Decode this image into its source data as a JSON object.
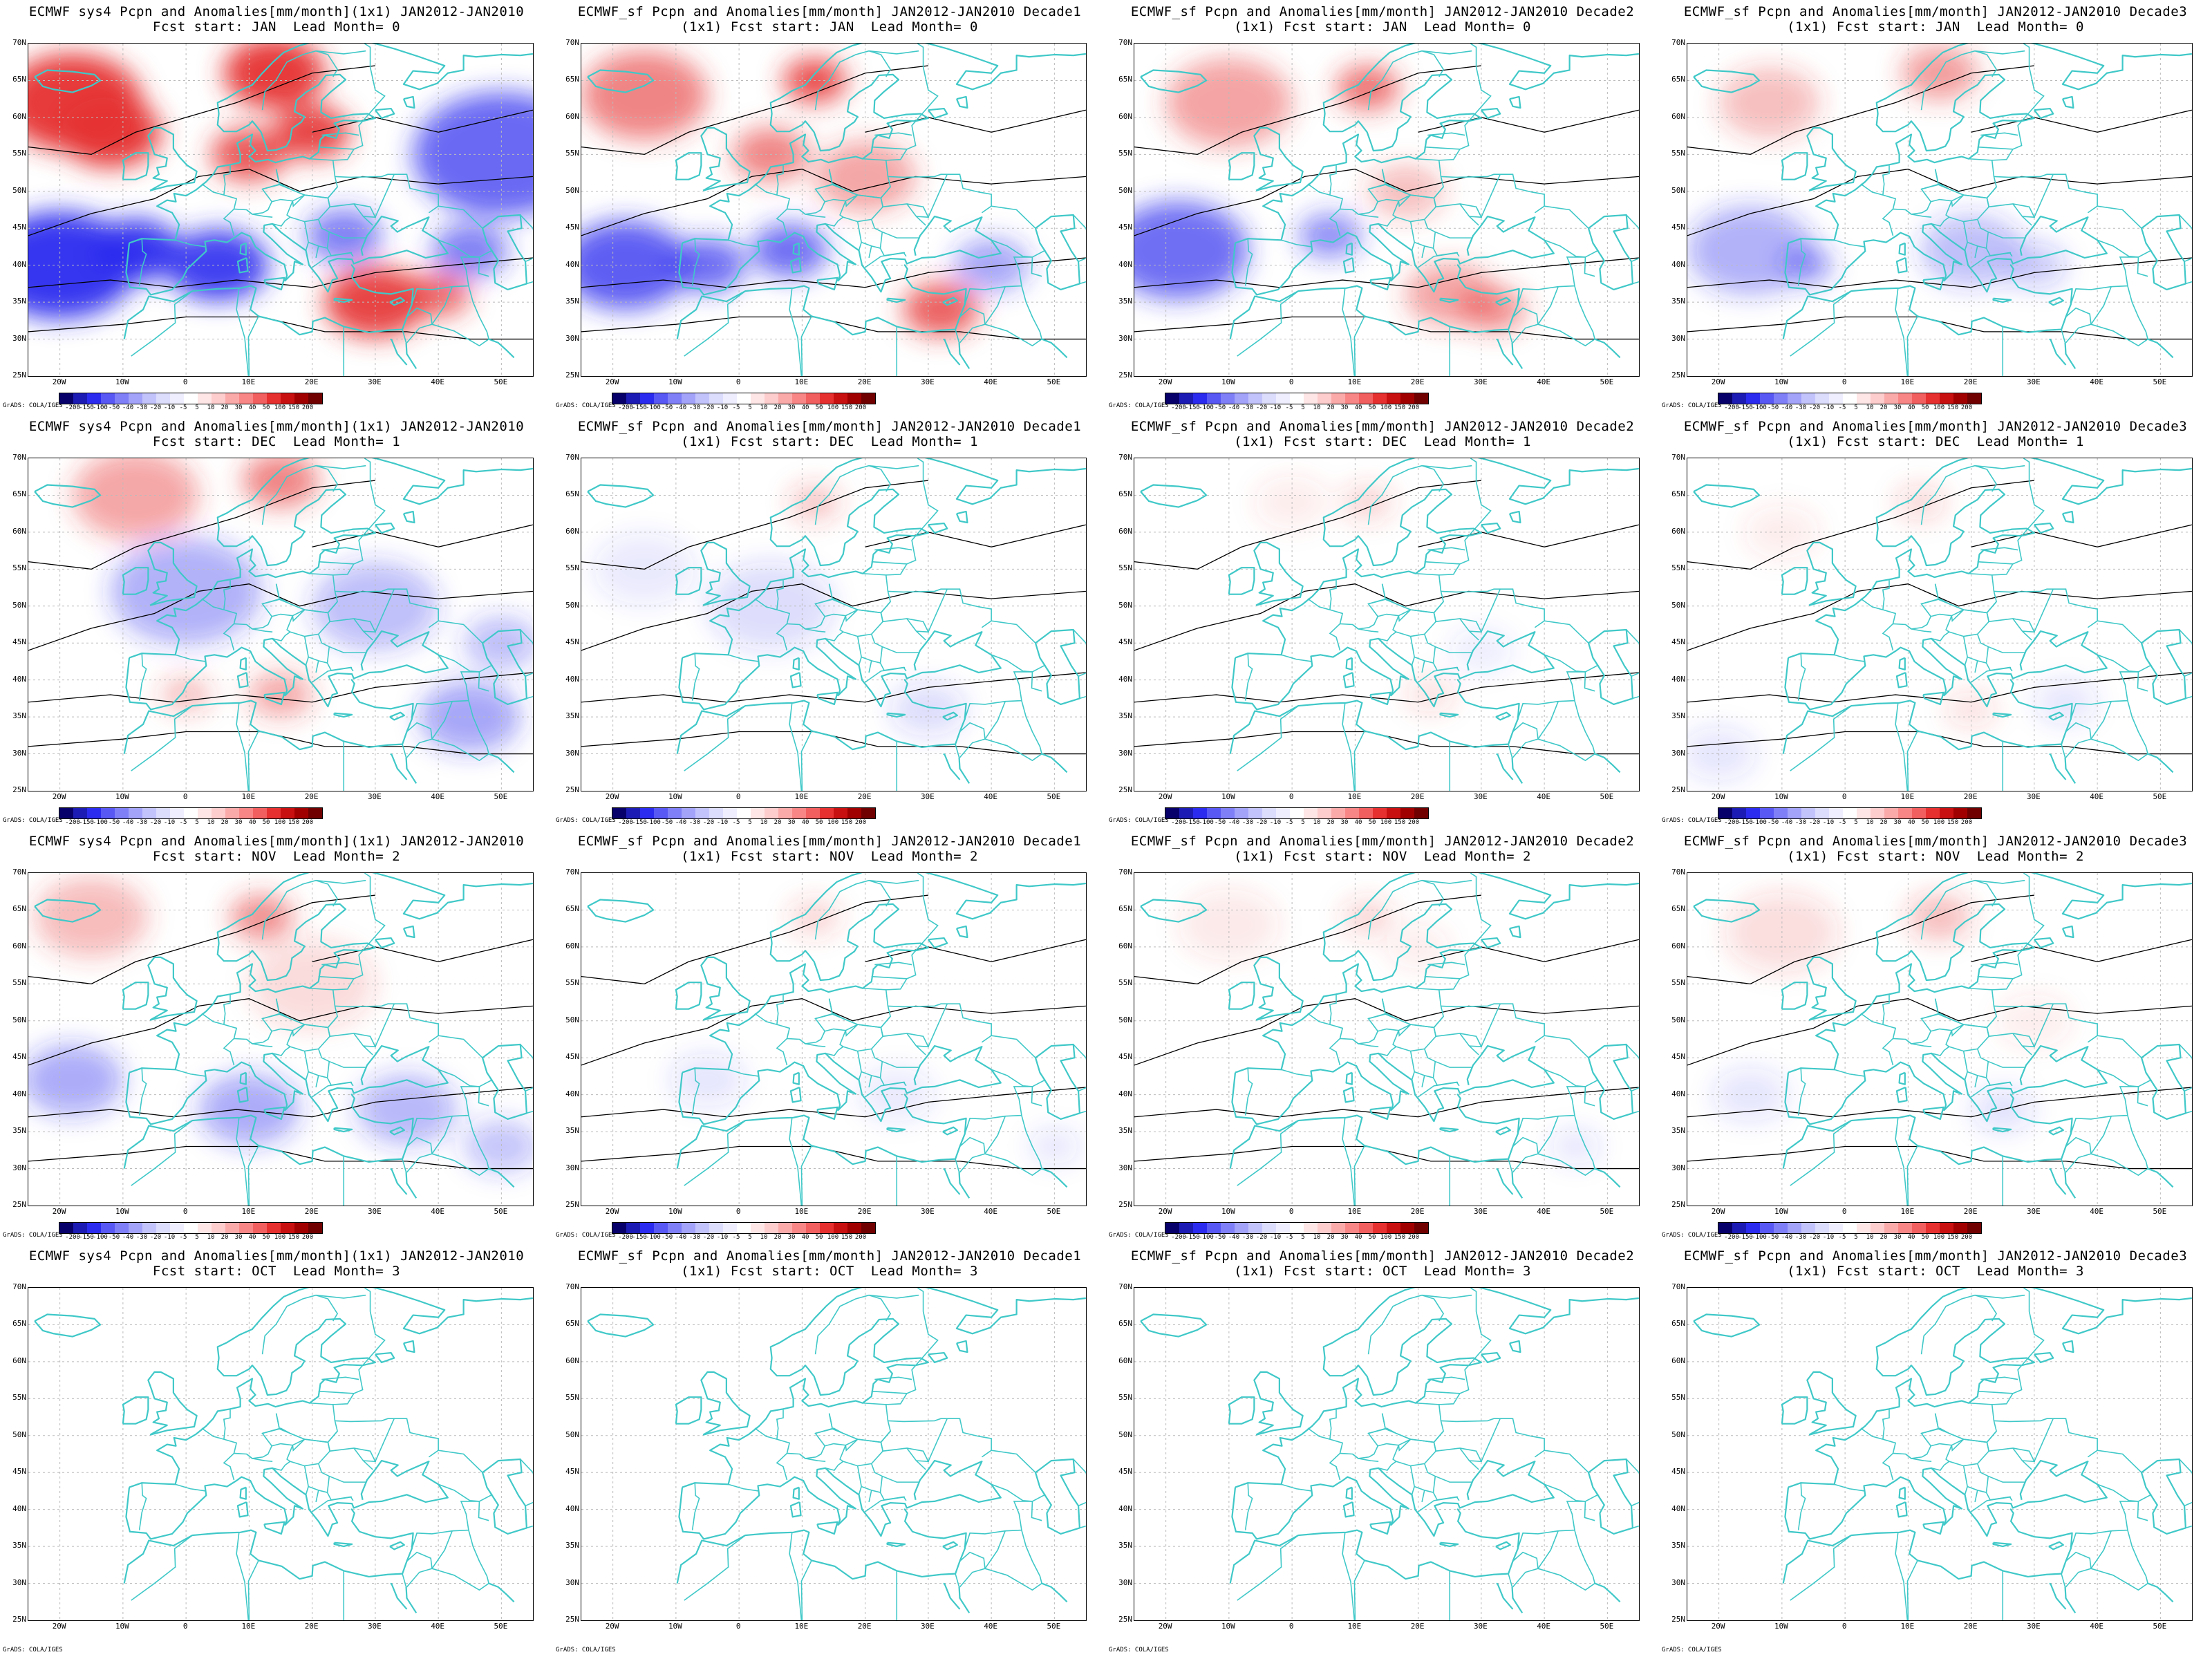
{
  "panels": [
    {
      "title1": "ECMWF sys4 Pcpn and Anomalies[mm/month](1x1) JAN2012-JAN2010",
      "title2": "Fcst start: JAN  Lead Month= 0",
      "intensity": 1.0,
      "colorbar": true
    },
    {
      "title1": "ECMWF_sf Pcpn and Anomalies[mm/month] JAN2012-JAN2010 Decade1",
      "title2": "(1x1) Fcst start: JAN  Lead Month= 0",
      "intensity": 0.85,
      "colorbar": true
    },
    {
      "title1": "ECMWF_sf Pcpn and Anomalies[mm/month] JAN2012-JAN2010 Decade2",
      "title2": "(1x1) Fcst start: JAN  Lead Month= 0",
      "intensity": 0.75,
      "colorbar": true
    },
    {
      "title1": "ECMWF_sf Pcpn and Anomalies[mm/month] JAN2012-JAN2010 Decade3",
      "title2": "(1x1) Fcst start: JAN  Lead Month= 0",
      "intensity": 0.6,
      "colorbar": true
    },
    {
      "title1": "ECMWF sys4 Pcpn and Anomalies[mm/month](1x1) JAN2012-JAN2010",
      "title2": "Fcst start: DEC  Lead Month= 1",
      "intensity": 0.6,
      "colorbar": true
    },
    {
      "title1": "ECMWF_sf Pcpn and Anomalies[mm/month] JAN2012-JAN2010 Decade1",
      "title2": "(1x1) Fcst start: DEC  Lead Month= 1",
      "intensity": 0.35,
      "colorbar": true
    },
    {
      "title1": "ECMWF_sf Pcpn and Anomalies[mm/month] JAN2012-JAN2010 Decade2",
      "title2": "(1x1) Fcst start: DEC  Lead Month= 1",
      "intensity": 0.3,
      "colorbar": true
    },
    {
      "title1": "ECMWF_sf Pcpn and Anomalies[mm/month] JAN2012-JAN2010 Decade3",
      "title2": "(1x1) Fcst start: DEC  Lead Month= 1",
      "intensity": 0.3,
      "colorbar": true
    },
    {
      "title1": "ECMWF sys4 Pcpn and Anomalies[mm/month](1x1) JAN2012-JAN2010",
      "title2": "Fcst start: NOV  Lead Month= 2",
      "intensity": 0.55,
      "colorbar": true
    },
    {
      "title1": "ECMWF_sf Pcpn and Anomalies[mm/month] JAN2012-JAN2010 Decade1",
      "title2": "(1x1) Fcst start: NOV  Lead Month= 2",
      "intensity": 0.3,
      "colorbar": true
    },
    {
      "title1": "ECMWF_sf Pcpn and Anomalies[mm/month] JAN2012-JAN2010 Decade2",
      "title2": "(1x1) Fcst start: NOV  Lead Month= 2",
      "intensity": 0.3,
      "colorbar": true
    },
    {
      "title1": "ECMWF_sf Pcpn and Anomalies[mm/month] JAN2012-JAN2010 Decade3",
      "title2": "(1x1) Fcst start: NOV  Lead Month= 2",
      "intensity": 0.35,
      "colorbar": true
    },
    {
      "title1": "ECMWF sys4 Pcpn and Anomalies[mm/month](1x1) JAN2012-JAN2010",
      "title2": "Fcst start: OCT  Lead Month= 3",
      "intensity": 0,
      "colorbar": false
    },
    {
      "title1": "ECMWF_sf Pcpn and Anomalies[mm/month] JAN2012-JAN2010 Decade1",
      "title2": "(1x1) Fcst start: OCT  Lead Month= 3",
      "intensity": 0,
      "colorbar": false
    },
    {
      "title1": "ECMWF_sf Pcpn and Anomalies[mm/month] JAN2012-JAN2010 Decade2",
      "title2": "(1x1) Fcst start: OCT  Lead Month= 3",
      "intensity": 0,
      "colorbar": false
    },
    {
      "title1": "ECMWF_sf Pcpn and Anomalies[mm/month] JAN2012-JAN2010 Decade3",
      "title2": "(1x1) Fcst start: OCT  Lead Month= 3",
      "intensity": 0,
      "colorbar": false
    }
  ],
  "lat_labels": [
    "70N",
    "65N",
    "60N",
    "55N",
    "50N",
    "45N",
    "40N",
    "35N",
    "30N",
    "25N"
  ],
  "lon_labels": [
    "20W",
    "10W",
    "0",
    "10E",
    "20E",
    "30E",
    "40E",
    "50E"
  ],
  "colorbar": {
    "labels": [
      "-200",
      "-150",
      "-100",
      "-50",
      "-40",
      "-30",
      "-20",
      "-10",
      "-5",
      "5",
      "10",
      "20",
      "30",
      "40",
      "50",
      "100",
      "150",
      "200"
    ],
    "colors": [
      "#08006a",
      "#1c1cb4",
      "#2b2bef",
      "#5858f5",
      "#7f7ff8",
      "#a3a3fa",
      "#c3c3fc",
      "#dcdcfd",
      "#eeeefe",
      "#ffffff",
      "#fee6e6",
      "#fdcccc",
      "#fbaaaa",
      "#f88686",
      "#f25f5f",
      "#e63030",
      "#c81010",
      "#a10000",
      "#700000"
    ]
  },
  "credit": "GrADS: COLA/IGES",
  "colors": {
    "coast": "#40c8c8",
    "contour": "#000000",
    "grid": "#bbbbbb"
  }
}
